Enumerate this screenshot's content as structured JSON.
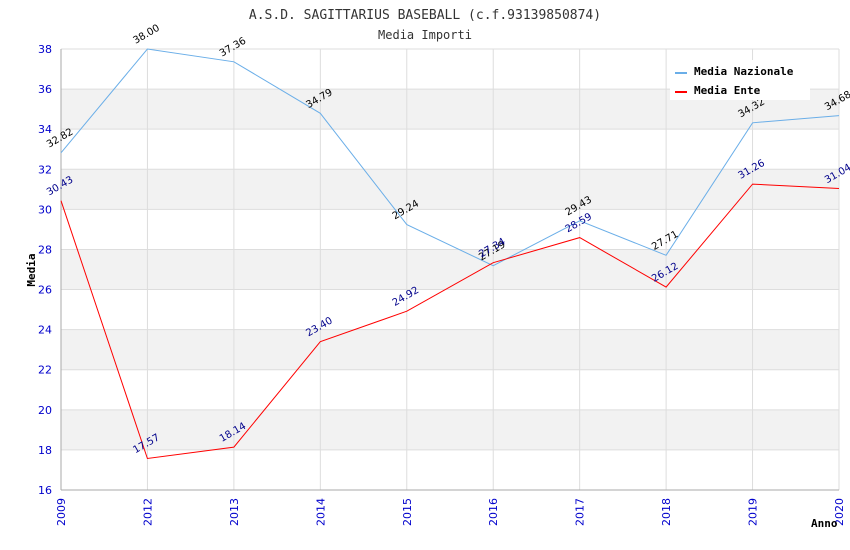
{
  "chart_data": {
    "type": "line",
    "title": "A.S.D. SAGITTARIUS BASEBALL (c.f.93139850874)",
    "subtitle": "Media Importi",
    "xlabel": "Anno",
    "ylabel": "Media",
    "categories": [
      "2009",
      "2012",
      "2013",
      "2014",
      "2015",
      "2016",
      "2017",
      "2018",
      "2019",
      "2020"
    ],
    "ylim": [
      16,
      38
    ],
    "yticks": [
      "16",
      "18",
      "20",
      "22",
      "24",
      "26",
      "28",
      "30",
      "32",
      "34",
      "36",
      "38"
    ],
    "legend_position": "top-right",
    "series": [
      {
        "name": "Media Nazionale",
        "color": "#6aaee8",
        "label_color": "#000000",
        "values": [
          32.82,
          38.0,
          37.36,
          34.79,
          29.24,
          27.19,
          29.43,
          27.71,
          34.32,
          34.68
        ],
        "labels": [
          "32.82",
          "38.00",
          "37.36",
          "34.79",
          "29.24",
          "27.19",
          "29.43",
          "27.71",
          "34.32",
          "34.68"
        ]
      },
      {
        "name": "Media Ente",
        "color": "#ff0000",
        "label_color": "#00008b",
        "values": [
          30.43,
          17.57,
          18.14,
          23.4,
          24.92,
          27.34,
          28.59,
          26.12,
          31.26,
          31.04
        ],
        "labels": [
          "30.43",
          "17.57",
          "18.14",
          "23.40",
          "24.92",
          "27.34",
          "28.59",
          "26.12",
          "31.26",
          "31.04"
        ]
      }
    ],
    "colors": {
      "tick_text": "#0000cc",
      "band": "#f2f2f2",
      "grid": "#dddddd"
    }
  }
}
